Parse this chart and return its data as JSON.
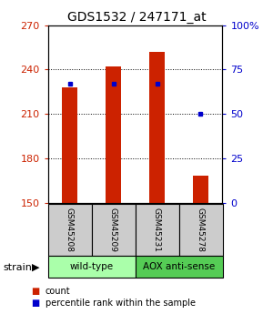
{
  "title": "GDS1532 / 247171_at",
  "samples": [
    "GSM45208",
    "GSM45209",
    "GSM45231",
    "GSM45278"
  ],
  "count_values": [
    228,
    242,
    252,
    168
  ],
  "percentile_values": [
    67,
    67,
    67,
    50
  ],
  "ylim_left": [
    150,
    270
  ],
  "ylim_right": [
    0,
    100
  ],
  "yticks_left": [
    150,
    180,
    210,
    240,
    270
  ],
  "yticks_right": [
    0,
    25,
    50,
    75,
    100
  ],
  "yticklabels_right": [
    "0",
    "25",
    "50",
    "75",
    "100%"
  ],
  "bar_color": "#cc2200",
  "dot_color": "#0000cc",
  "bar_bottom": 150,
  "group0_label": "wild-type",
  "group0_color": "#aaffaa",
  "group1_label": "AOX anti-sense",
  "group1_color": "#55cc55",
  "strain_label": "strain",
  "legend_count_label": "count",
  "legend_percentile_label": "percentile rank within the sample",
  "background_color": "#ffffff",
  "left_tick_color": "#cc2200",
  "right_tick_color": "#0000cc",
  "bar_width": 0.35
}
